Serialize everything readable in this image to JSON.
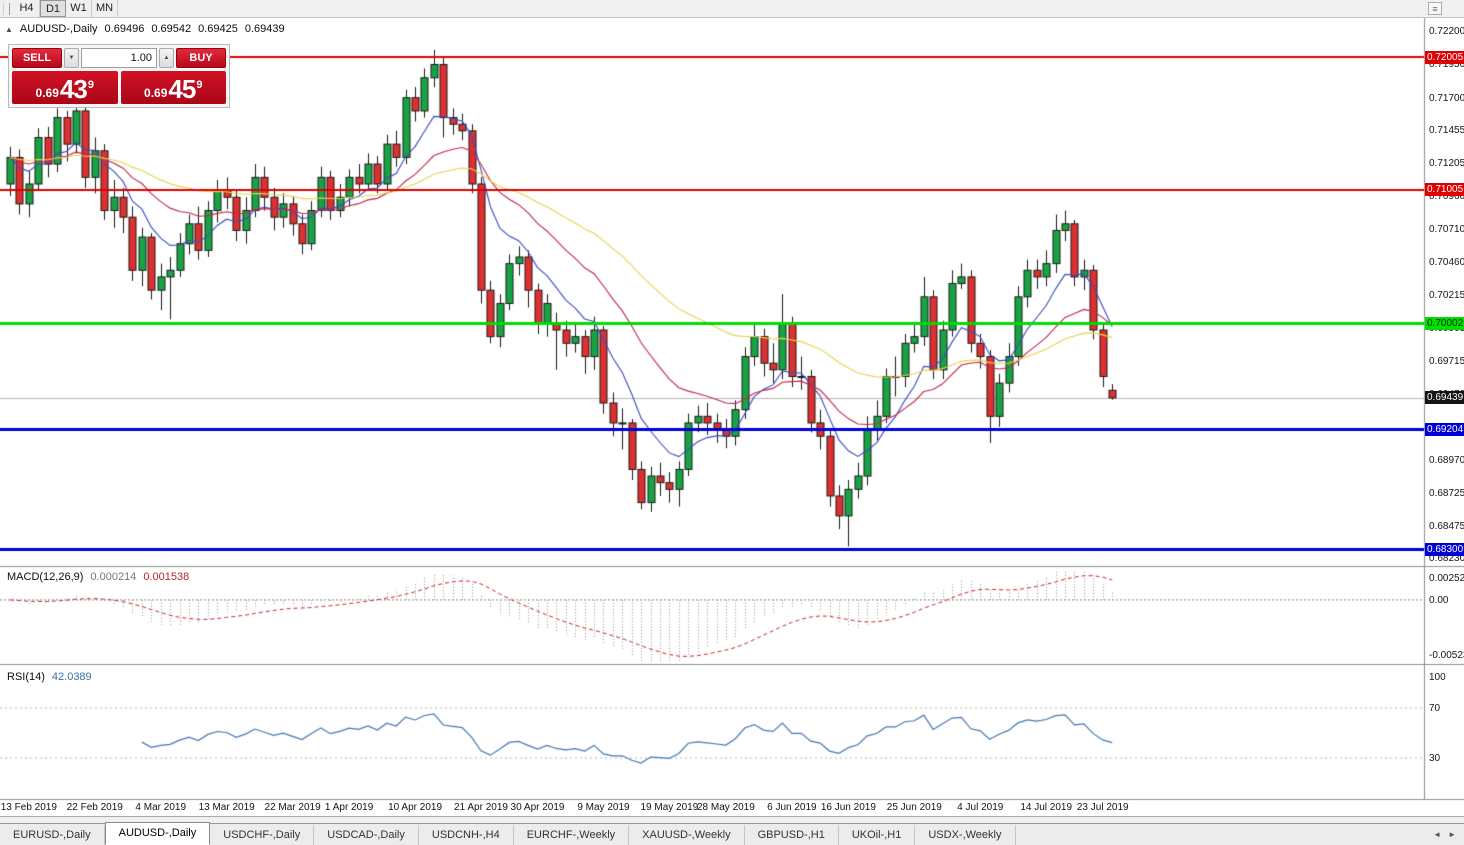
{
  "toolbar": {
    "timeframes": [
      {
        "label": "H4",
        "active": false
      },
      {
        "label": "D1",
        "active": true
      },
      {
        "label": "W1",
        "active": false
      },
      {
        "label": "MN",
        "active": false
      }
    ]
  },
  "icons": {
    "collapse": "▲",
    "menu": "≡",
    "step_down": "▼",
    "step_up": "▲",
    "tab_prev": "◄",
    "tab_next": "►"
  },
  "chart": {
    "info": {
      "title": "AUDUSD-,Daily",
      "open": "0.69496",
      "high": "0.69542",
      "low": "0.69425",
      "close": "0.69439"
    },
    "trade_panel": {
      "sell_label": "SELL",
      "buy_label": "BUY",
      "volume": "1.00",
      "sell_price": {
        "figure": "0.69",
        "pips": "43",
        "point": "9"
      },
      "buy_price": {
        "figure": "0.69",
        "pips": "45",
        "point": "9"
      }
    }
  },
  "chart_data": {
    "type": "candlestick",
    "symbol": "AUDUSD-",
    "timeframe": "Daily",
    "colors": {
      "up": "#18a444",
      "down": "#df3030",
      "outline": "#1a1a1a",
      "ma_fast": "#3a4cc4",
      "ma_mid": "#c42847",
      "ma_slow": "#e8d44f",
      "macd_hist": "#9a9a9a",
      "macd_signal": "#cc2a2a",
      "rsi": "#4479b2",
      "current_line": "#b8b8b8"
    },
    "y_axis": {
      "price_max": 0.72255,
      "price_min": 0.6818,
      "ticks": [
        "0.72200",
        "0.71950",
        "0.71700",
        "0.71455",
        "0.71205",
        "0.70960",
        "0.70710",
        "0.70460",
        "0.70215",
        "0.69965",
        "0.69715",
        "0.69470",
        "0.69220",
        "0.68970",
        "0.68725",
        "0.68475",
        "0.68230"
      ]
    },
    "x_labels": [
      {
        "text": "13 Feb 2019",
        "index": 2
      },
      {
        "text": "22 Feb 2019",
        "index": 9
      },
      {
        "text": "4 Mar 2019",
        "index": 16
      },
      {
        "text": "13 Mar 2019",
        "index": 23
      },
      {
        "text": "22 Mar 2019",
        "index": 30
      },
      {
        "text": "1 Apr 2019",
        "index": 36
      },
      {
        "text": "10 Apr 2019",
        "index": 43
      },
      {
        "text": "21 Apr 2019",
        "index": 50
      },
      {
        "text": "30 Apr 2019",
        "index": 56
      },
      {
        "text": "9 May 2019",
        "index": 63
      },
      {
        "text": "19 May 2019",
        "index": 70
      },
      {
        "text": "28 May 2019",
        "index": 76
      },
      {
        "text": "6 Jun 2019",
        "index": 83
      },
      {
        "text": "16 Jun 2019",
        "index": 89
      },
      {
        "text": "25 Jun 2019",
        "index": 96
      },
      {
        "text": "4 Jul 2019",
        "index": 103
      },
      {
        "text": "14 Jul 2019",
        "index": 110
      },
      {
        "text": "23 Jul 2019",
        "index": 116
      }
    ],
    "candles": [
      [
        0.7105,
        0.7133,
        0.7096,
        0.7125
      ],
      [
        0.7125,
        0.7131,
        0.7082,
        0.709
      ],
      [
        0.709,
        0.7115,
        0.708,
        0.7105
      ],
      [
        0.7105,
        0.7147,
        0.71,
        0.714
      ],
      [
        0.714,
        0.7148,
        0.711,
        0.712
      ],
      [
        0.712,
        0.7162,
        0.7114,
        0.7155
      ],
      [
        0.7155,
        0.716,
        0.7122,
        0.7135
      ],
      [
        0.7135,
        0.7168,
        0.7128,
        0.716
      ],
      [
        0.716,
        0.7165,
        0.7102,
        0.711
      ],
      [
        0.711,
        0.714,
        0.7098,
        0.713
      ],
      [
        0.713,
        0.7135,
        0.7078,
        0.7085
      ],
      [
        0.7085,
        0.7108,
        0.7072,
        0.7095
      ],
      [
        0.7095,
        0.7102,
        0.7068,
        0.708
      ],
      [
        0.708,
        0.7088,
        0.7032,
        0.704
      ],
      [
        0.704,
        0.7072,
        0.7028,
        0.7065
      ],
      [
        0.7065,
        0.7068,
        0.7018,
        0.7025
      ],
      [
        0.7025,
        0.7045,
        0.701,
        0.7035
      ],
      [
        0.7035,
        0.705,
        0.7003,
        0.704
      ],
      [
        0.704,
        0.7068,
        0.7035,
        0.706
      ],
      [
        0.706,
        0.7082,
        0.7052,
        0.7075
      ],
      [
        0.7075,
        0.7088,
        0.7048,
        0.7055
      ],
      [
        0.7055,
        0.7092,
        0.705,
        0.7085
      ],
      [
        0.7085,
        0.7108,
        0.7076,
        0.71
      ],
      [
        0.71,
        0.711,
        0.7086,
        0.7095
      ],
      [
        0.7095,
        0.71,
        0.7062,
        0.707
      ],
      [
        0.707,
        0.7095,
        0.706,
        0.7085
      ],
      [
        0.7085,
        0.712,
        0.708,
        0.711
      ],
      [
        0.711,
        0.7118,
        0.7085,
        0.7095
      ],
      [
        0.7095,
        0.7102,
        0.707,
        0.708
      ],
      [
        0.708,
        0.7098,
        0.7072,
        0.709
      ],
      [
        0.709,
        0.7096,
        0.7066,
        0.7075
      ],
      [
        0.7075,
        0.7082,
        0.7052,
        0.706
      ],
      [
        0.706,
        0.7092,
        0.7055,
        0.7085
      ],
      [
        0.7085,
        0.7118,
        0.708,
        0.711
      ],
      [
        0.711,
        0.7115,
        0.7078,
        0.7085
      ],
      [
        0.7085,
        0.7105,
        0.708,
        0.7095
      ],
      [
        0.7095,
        0.7116,
        0.7088,
        0.711
      ],
      [
        0.711,
        0.712,
        0.7098,
        0.7105
      ],
      [
        0.7105,
        0.7128,
        0.71,
        0.712
      ],
      [
        0.712,
        0.7126,
        0.7098,
        0.7105
      ],
      [
        0.7105,
        0.7142,
        0.71,
        0.7135
      ],
      [
        0.7135,
        0.7145,
        0.7118,
        0.7125
      ],
      [
        0.7125,
        0.7176,
        0.712,
        0.717
      ],
      [
        0.717,
        0.7178,
        0.7152,
        0.716
      ],
      [
        0.716,
        0.7192,
        0.7155,
        0.7185
      ],
      [
        0.7185,
        0.7206,
        0.7178,
        0.7195
      ],
      [
        0.7195,
        0.72,
        0.714,
        0.7155
      ],
      [
        0.7155,
        0.7162,
        0.7142,
        0.715
      ],
      [
        0.715,
        0.7158,
        0.7138,
        0.7145
      ],
      [
        0.7145,
        0.715,
        0.7098,
        0.7105
      ],
      [
        0.7105,
        0.711,
        0.7015,
        0.7025
      ],
      [
        0.7025,
        0.7032,
        0.6985,
        0.699
      ],
      [
        0.699,
        0.7022,
        0.6982,
        0.7015
      ],
      [
        0.7015,
        0.7052,
        0.701,
        0.7045
      ],
      [
        0.7045,
        0.7058,
        0.7036,
        0.705
      ],
      [
        0.705,
        0.7055,
        0.7012,
        0.7025
      ],
      [
        0.7025,
        0.703,
        0.6992,
        0.7
      ],
      [
        0.7,
        0.7022,
        0.699,
        0.7015
      ],
      [
        0.7,
        0.7008,
        0.6965,
        0.6995
      ],
      [
        0.6995,
        0.7002,
        0.6975,
        0.6985
      ],
      [
        0.6985,
        0.7,
        0.6978,
        0.699
      ],
      [
        0.699,
        0.6995,
        0.6962,
        0.6975
      ],
      [
        0.6975,
        0.7005,
        0.6965,
        0.6995
      ],
      [
        0.6995,
        0.6998,
        0.6932,
        0.694
      ],
      [
        0.694,
        0.6948,
        0.6915,
        0.6925
      ],
      [
        0.6925,
        0.6936,
        0.6905,
        0.6925
      ],
      [
        0.6925,
        0.6928,
        0.6882,
        0.689
      ],
      [
        0.689,
        0.6896,
        0.686,
        0.6865
      ],
      [
        0.6865,
        0.6892,
        0.6858,
        0.6885
      ],
      [
        0.6885,
        0.6895,
        0.687,
        0.688
      ],
      [
        0.688,
        0.6888,
        0.6865,
        0.6875
      ],
      [
        0.6875,
        0.6896,
        0.6862,
        0.689
      ],
      [
        0.689,
        0.6932,
        0.6885,
        0.6925
      ],
      [
        0.6925,
        0.6938,
        0.6918,
        0.693
      ],
      [
        0.693,
        0.694,
        0.6916,
        0.6925
      ],
      [
        0.6925,
        0.6932,
        0.691,
        0.692
      ],
      [
        0.692,
        0.6928,
        0.6906,
        0.6915
      ],
      [
        0.6915,
        0.6942,
        0.6908,
        0.6935
      ],
      [
        0.6935,
        0.6982,
        0.6928,
        0.6975
      ],
      [
        0.6975,
        0.7,
        0.6968,
        0.699
      ],
      [
        0.699,
        0.6996,
        0.696,
        0.697
      ],
      [
        0.697,
        0.6985,
        0.6955,
        0.6965
      ],
      [
        0.6965,
        0.7022,
        0.6958,
        0.7
      ],
      [
        0.7,
        0.7005,
        0.6952,
        0.696
      ],
      [
        0.696,
        0.6975,
        0.695,
        0.696
      ],
      [
        0.696,
        0.6965,
        0.6918,
        0.6925
      ],
      [
        0.6925,
        0.6935,
        0.6905,
        0.6915
      ],
      [
        0.6915,
        0.692,
        0.6862,
        0.687
      ],
      [
        0.687,
        0.6878,
        0.6845,
        0.6855
      ],
      [
        0.6855,
        0.6882,
        0.6832,
        0.6875
      ],
      [
        0.6875,
        0.6895,
        0.6868,
        0.6885
      ],
      [
        0.6885,
        0.693,
        0.6878,
        0.692
      ],
      [
        0.692,
        0.6942,
        0.6912,
        0.693
      ],
      [
        0.693,
        0.6966,
        0.6925,
        0.696
      ],
      [
        0.696,
        0.6975,
        0.6945,
        0.696
      ],
      [
        0.696,
        0.6992,
        0.6952,
        0.6985
      ],
      [
        0.6985,
        0.7,
        0.6978,
        0.699
      ],
      [
        0.699,
        0.7035,
        0.6983,
        0.702
      ],
      [
        0.702,
        0.7025,
        0.6958,
        0.6965
      ],
      [
        0.6965,
        0.7002,
        0.6958,
        0.6995
      ],
      [
        0.6995,
        0.704,
        0.699,
        0.703
      ],
      [
        0.703,
        0.7045,
        0.7026,
        0.7035
      ],
      [
        0.7035,
        0.704,
        0.6978,
        0.6985
      ],
      [
        0.6985,
        0.6992,
        0.6966,
        0.6975
      ],
      [
        0.6975,
        0.698,
        0.691,
        0.693
      ],
      [
        0.693,
        0.6962,
        0.6922,
        0.6955
      ],
      [
        0.6955,
        0.6985,
        0.6948,
        0.6975
      ],
      [
        0.6975,
        0.7028,
        0.6968,
        0.702
      ],
      [
        0.702,
        0.7048,
        0.7012,
        0.704
      ],
      [
        0.704,
        0.7048,
        0.7026,
        0.7035
      ],
      [
        0.7035,
        0.7055,
        0.7028,
        0.7045
      ],
      [
        0.7045,
        0.7082,
        0.7038,
        0.707
      ],
      [
        0.707,
        0.7085,
        0.7062,
        0.7075
      ],
      [
        0.7075,
        0.7078,
        0.7028,
        0.7035
      ],
      [
        0.7035,
        0.7048,
        0.7025,
        0.704
      ],
      [
        0.704,
        0.7044,
        0.6988,
        0.6995
      ],
      [
        0.6995,
        0.7,
        0.6952,
        0.696
      ],
      [
        0.69496,
        0.69542,
        0.69425,
        0.69439
      ]
    ],
    "moving_averages": [
      {
        "period": 8,
        "color_key": "ma_fast"
      },
      {
        "period": 20,
        "color_key": "ma_mid"
      },
      {
        "period": 45,
        "color_key": "ma_slow"
      }
    ],
    "levels": [
      {
        "price": 0.72005,
        "label": "0.72005",
        "color": "#dd0000",
        "text_color": "#ffffff",
        "width": 2
      },
      {
        "price": 0.71005,
        "label": "0.71005",
        "color": "#dd0000",
        "text_color": "#ffffff",
        "width": 2
      },
      {
        "price": 0.70002,
        "label": "0.70002",
        "color": "#00dd00",
        "text_color": "#033303",
        "width": 3
      },
      {
        "price": 0.69204,
        "label": "0.69204",
        "color": "#0000d4",
        "text_color": "#ffffff",
        "width": 3
      },
      {
        "price": 0.683,
        "label": "0.68300",
        "color": "#0000d4",
        "text_color": "#ffffff",
        "width": 3
      }
    ],
    "current_price": {
      "value": 0.69439,
      "label": "0.69439"
    },
    "macd": {
      "name": "MACD(12,26,9)",
      "value_main": "0.000214",
      "value_signal": "0.001538",
      "fast": 12,
      "slow": 26,
      "signal": 9,
      "axis_max": 0.002522,
      "axis_min": -0.005234,
      "ticks": {
        "top": "0.002522",
        "zero": "0.00",
        "bottom": "-0.005234"
      }
    },
    "rsi": {
      "name": "RSI(14)",
      "value": "42.0389",
      "period": 14,
      "levels": [
        70,
        30
      ],
      "ticks": [
        "100",
        "70",
        "30"
      ]
    }
  },
  "bottom_tabs": {
    "tabs": [
      {
        "label": "EURUSD-,Daily",
        "active": false
      },
      {
        "label": "AUDUSD-,Daily",
        "active": true
      },
      {
        "label": "USDCHF-,Daily",
        "active": false
      },
      {
        "label": "USDCAD-,Daily",
        "active": false
      },
      {
        "label": "USDCNH-,H4",
        "active": false
      },
      {
        "label": "EURCHF-,Weekly",
        "active": false
      },
      {
        "label": "XAUUSD-,Weekly",
        "active": false
      },
      {
        "label": "GBPUSD-,H1",
        "active": false
      },
      {
        "label": "UKOil-,H1",
        "active": false
      },
      {
        "label": "USDX-,Weekly",
        "active": false
      }
    ]
  }
}
